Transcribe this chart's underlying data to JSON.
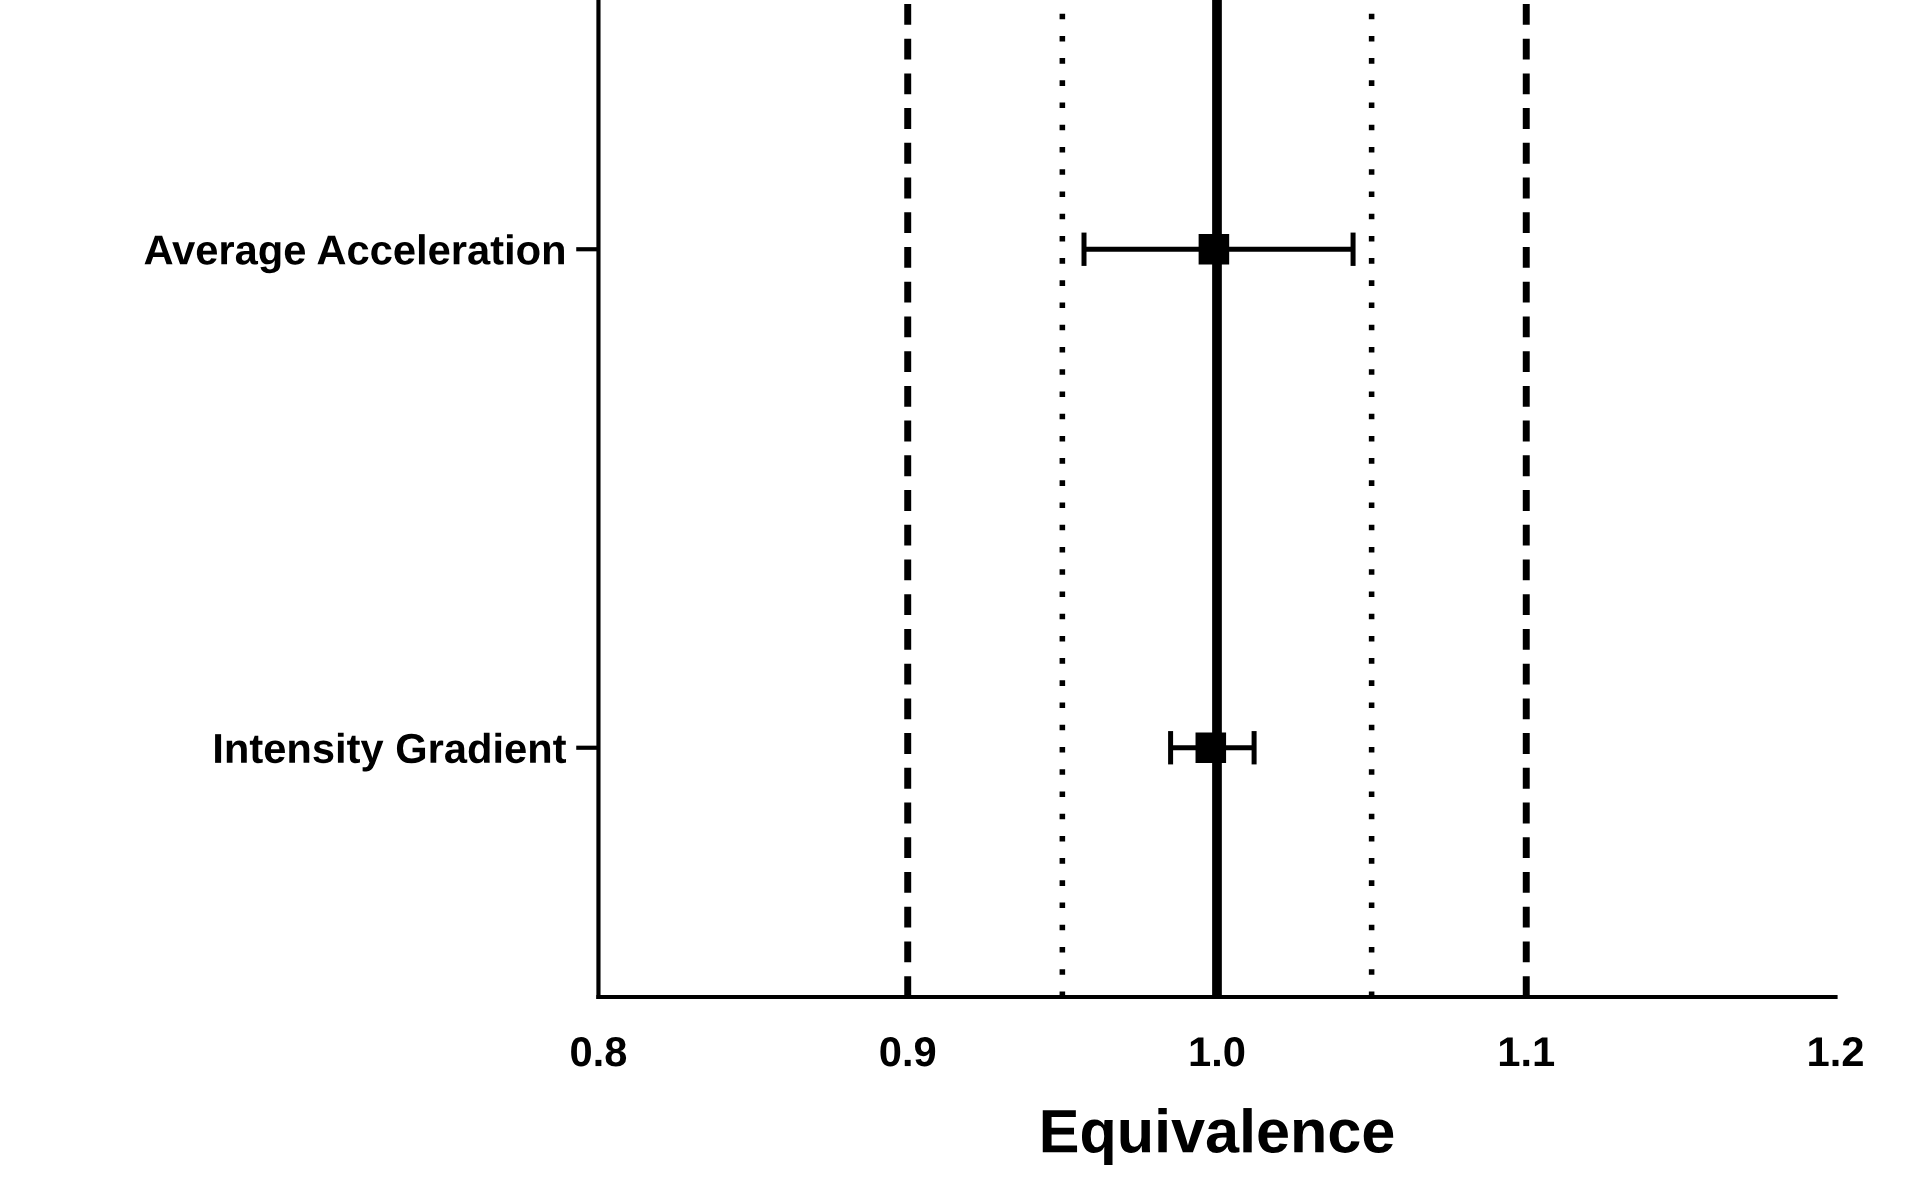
{
  "chart_data": {
    "type": "scatter",
    "orientation": "horizontal",
    "xlabel": "Equivalence",
    "categories": [
      "Average Acceleration",
      "Intensity Gradient"
    ],
    "values": [
      0.999,
      0.998
    ],
    "errors": [
      [
        0.957,
        1.044
      ],
      [
        0.985,
        1.012
      ]
    ],
    "color": "#000000",
    "marker": "square",
    "xlim": [
      0.8,
      1.2
    ],
    "xticks": [
      0.8,
      0.9,
      {
        "value": 1,
        "label": "1.0"
      },
      1.1,
      1.2
    ],
    "ref_lines": [
      {
        "axis": "x",
        "value": 0.9,
        "line_style": "dashed",
        "color": "#000000"
      },
      {
        "axis": "x",
        "value": 0.95,
        "line_style": "dotted",
        "color": "#000000"
      },
      {
        "axis": "x",
        "value": 1.0,
        "line_style": "solid",
        "color": "#000000"
      },
      {
        "axis": "x",
        "value": 1.05,
        "line_style": "dotted",
        "color": "#000000"
      },
      {
        "axis": "x",
        "value": 1.1,
        "line_style": "dashed",
        "color": "#000000"
      }
    ],
    "grid": false
  }
}
